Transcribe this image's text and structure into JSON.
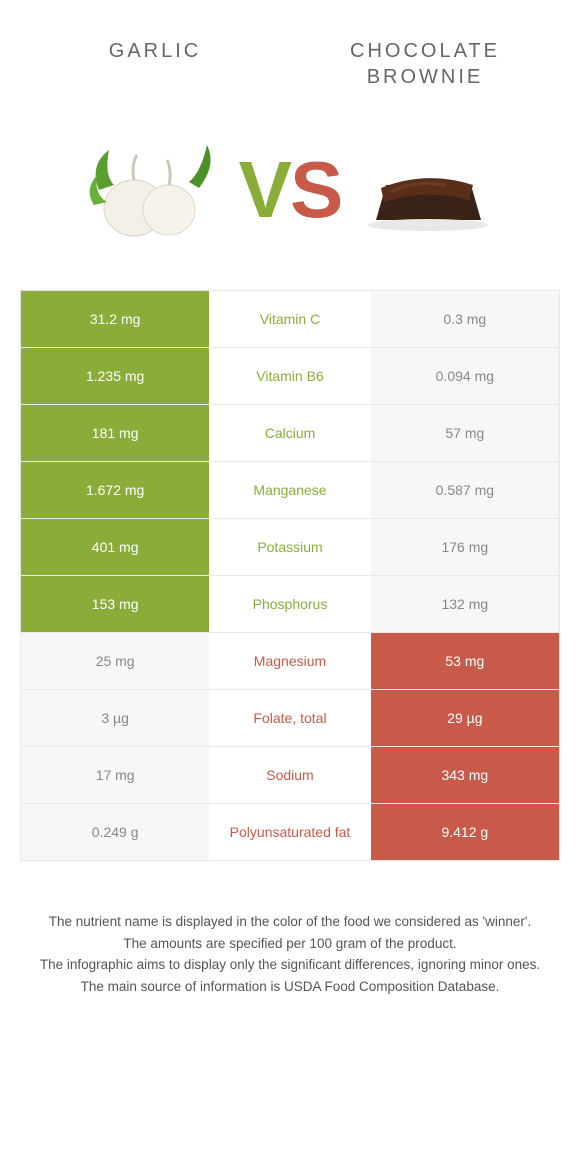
{
  "titles": {
    "left": "GARLIC",
    "right": "CHOCOLATE BROWNIE"
  },
  "vs": {
    "v": "V",
    "s": "S"
  },
  "colors": {
    "garlic": "#8aad3a",
    "brownie": "#c85a4a",
    "neutral_left": "#f7f7f5",
    "neutral_right": "#f7f7f5",
    "neutral_text": "#888888"
  },
  "rows": [
    {
      "nutrient": "Vitamin C",
      "left": "31.2 mg",
      "right": "0.3 mg",
      "winner": "left"
    },
    {
      "nutrient": "Vitamin B6",
      "left": "1.235 mg",
      "right": "0.094 mg",
      "winner": "left"
    },
    {
      "nutrient": "Calcium",
      "left": "181 mg",
      "right": "57 mg",
      "winner": "left"
    },
    {
      "nutrient": "Manganese",
      "left": "1.672 mg",
      "right": "0.587 mg",
      "winner": "left"
    },
    {
      "nutrient": "Potassium",
      "left": "401 mg",
      "right": "176 mg",
      "winner": "left"
    },
    {
      "nutrient": "Phosphorus",
      "left": "153 mg",
      "right": "132 mg",
      "winner": "left"
    },
    {
      "nutrient": "Magnesium",
      "left": "25 mg",
      "right": "53 mg",
      "winner": "right"
    },
    {
      "nutrient": "Folate, total",
      "left": "3 µg",
      "right": "29 µg",
      "winner": "right"
    },
    {
      "nutrient": "Sodium",
      "left": "17 mg",
      "right": "343 mg",
      "winner": "right"
    },
    {
      "nutrient": "Polyunsaturated fat",
      "left": "0.249 g",
      "right": "9.412 g",
      "winner": "right"
    }
  ],
  "footnotes": [
    "The nutrient name is displayed in the color of the food we considered as 'winner'.",
    "The amounts are specified per 100 gram of the product.",
    "The infographic aims to display only the significant differences, ignoring minor ones.",
    "The main source of information is USDA Food Composition Database."
  ]
}
